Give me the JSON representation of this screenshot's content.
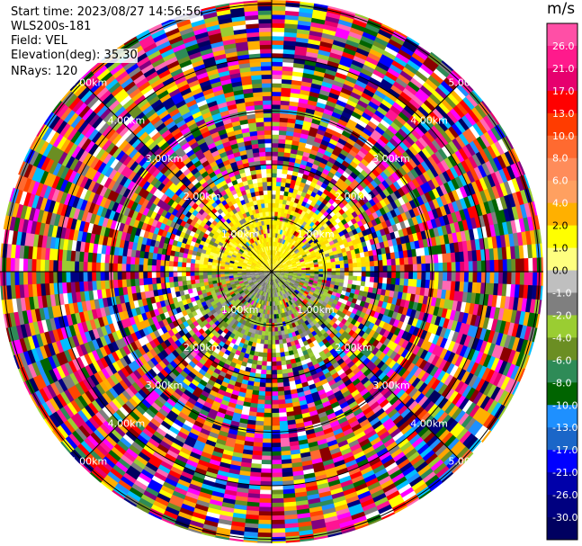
{
  "header": {
    "start_time": "Start time: 2023/08/27 14:56:56",
    "instrument": "WLS200s-181",
    "field": "Field: VEL",
    "elevation": "Elevation(deg): 35.30",
    "nrays": "NRays: 120"
  },
  "chart_data": {
    "type": "heatmap",
    "projection": "polar-ppi",
    "field": "VEL",
    "units": "m/s",
    "nrays": 120,
    "range_rings_km": [
      1.0,
      2.0,
      3.0,
      4.0,
      5.0
    ],
    "range_ring_labels": [
      "1.00km",
      "2.00km",
      "3.00km",
      "4.00km",
      "5.00km"
    ],
    "colorbar": {
      "label": "m/s",
      "ticks": [
        "26.0",
        "21.0",
        "17.0",
        "13.0",
        "10.0",
        "8.0",
        "6.0",
        "4.0",
        "2.0",
        "1.0",
        "0.0",
        "-1.0",
        "-2.0",
        "-4.0",
        "-6.0",
        "-8.0",
        "-10.0",
        "-13.0",
        "-17.0",
        "-21.0",
        "-26.0",
        "-30.0"
      ],
      "colors": [
        "#ff4fa6",
        "#ff1a8c",
        "#e6006e",
        "#ff0000",
        "#ff3c00",
        "#ff6a30",
        "#ff8c5a",
        "#ffa060",
        "#ffb000",
        "#ffff00",
        "#ffff80",
        "#bfbfbf",
        "#7f7f7f",
        "#9acd32",
        "#6b8e23",
        "#2e8b57",
        "#006400",
        "#1e90ff",
        "#1a66c8",
        "#0000ff",
        "#0000aa",
        "#000080",
        "#000060"
      ]
    }
  }
}
